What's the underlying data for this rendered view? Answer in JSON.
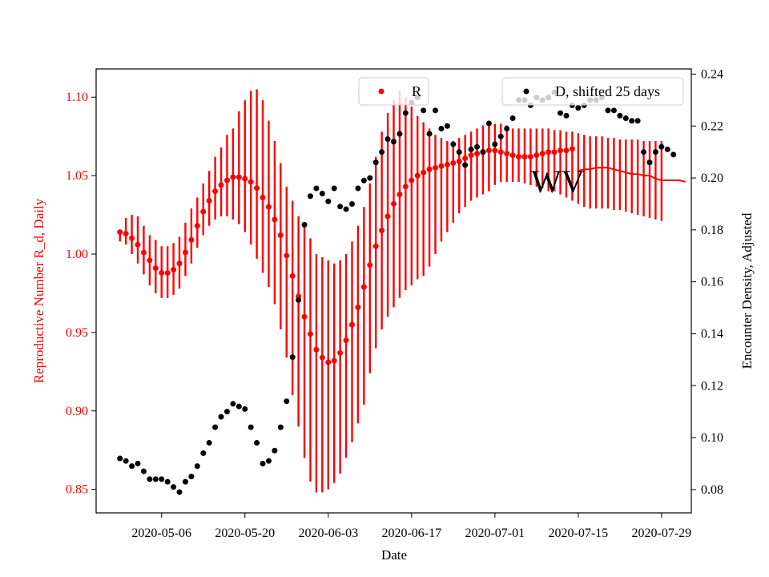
{
  "chart_data": {
    "type": "scatter",
    "xlabel": "Date",
    "ylabel_left": "Reproductive Number R_d, Daily",
    "ylabel_right": "Encounter Density, Adjusted",
    "annotation": "WV",
    "x_start": "2020-04-29",
    "x_ticks": [
      "2020-05-06",
      "2020-05-20",
      "2020-06-03",
      "2020-06-17",
      "2020-07-01",
      "2020-07-15",
      "2020-07-29"
    ],
    "x_lim": [
      "2020-04-25",
      "2020-08-03"
    ],
    "ylim_left": [
      0.835,
      1.118
    ],
    "ylim_right": [
      0.071,
      0.242
    ],
    "yticks_left": [
      "0.85",
      "0.90",
      "0.95",
      "1.00",
      "1.05",
      "1.10"
    ],
    "yticks_right": [
      "0.08",
      "0.10",
      "0.12",
      "0.14",
      "0.16",
      "0.18",
      "0.20",
      "0.22",
      "0.24"
    ],
    "colors": {
      "R": "#ff0000",
      "D": "#000000"
    },
    "legend_placement": "upper",
    "series": [
      {
        "name": "R",
        "axis": "left",
        "marker": "filled-dot",
        "color": "#ff0000",
        "values": [
          1.014,
          1.013,
          1.01,
          1.006,
          1.001,
          0.996,
          0.991,
          0.988,
          0.988,
          0.99,
          0.994,
          1.001,
          1.009,
          1.018,
          1.027,
          1.034,
          1.04,
          1.044,
          1.047,
          1.049,
          1.049,
          1.048,
          1.046,
          1.042,
          1.036,
          1.03,
          1.022,
          1.012,
          0.999,
          0.986,
          0.973,
          0.96,
          0.949,
          0.939,
          0.934,
          0.931,
          0.932,
          0.937,
          0.945,
          0.955,
          0.966,
          0.979,
          0.993,
          1.005,
          1.015,
          1.024,
          1.032,
          1.038,
          1.043,
          1.047,
          1.05,
          1.052,
          1.054,
          1.055,
          1.056,
          1.057,
          1.058,
          1.059,
          1.061,
          1.063,
          1.064,
          1.065,
          1.066,
          1.066,
          1.065,
          1.064,
          1.063,
          1.062,
          1.062,
          1.062,
          1.063,
          1.064,
          1.065,
          1.065,
          1.066,
          1.066,
          1.067,
          null,
          null,
          null,
          null,
          null,
          null,
          null,
          null,
          null,
          null,
          null,
          null,
          null,
          null,
          null
        ],
        "lower": [
          1.008,
          1.006,
          1.0,
          0.994,
          0.987,
          0.98,
          0.975,
          0.972,
          0.972,
          0.974,
          0.978,
          0.986,
          0.994,
          1.004,
          1.012,
          1.018,
          1.022,
          1.024,
          1.024,
          1.022,
          1.019,
          1.014,
          1.006,
          0.997,
          0.988,
          0.979,
          0.968,
          0.952,
          0.934,
          0.91,
          0.89,
          0.87,
          0.855,
          0.848,
          0.848,
          0.85,
          0.854,
          0.86,
          0.87,
          0.88,
          0.892,
          0.904,
          0.924,
          0.94,
          0.952,
          0.96,
          0.966,
          0.972,
          0.977,
          0.98,
          0.984,
          0.986,
          0.992,
          1.0,
          1.008,
          1.014,
          1.02,
          1.026,
          1.03,
          1.034,
          1.036,
          1.038,
          1.04,
          1.044,
          1.046,
          1.046,
          1.046,
          1.046,
          1.045,
          1.044,
          1.043,
          1.042,
          1.04,
          1.04,
          1.038,
          1.036,
          1.034,
          1.032,
          1.03,
          1.029,
          1.029,
          1.029,
          1.029,
          1.028,
          1.028,
          1.027,
          1.026,
          1.025,
          1.024,
          1.023,
          1.022,
          1.021
        ],
        "upper": [
          1.015,
          1.023,
          1.025,
          1.024,
          1.018,
          1.012,
          1.009,
          1.005,
          1.005,
          1.007,
          1.011,
          1.02,
          1.029,
          1.036,
          1.045,
          1.053,
          1.062,
          1.068,
          1.076,
          1.08,
          1.091,
          1.098,
          1.104,
          1.105,
          1.098,
          1.085,
          1.072,
          1.058,
          1.043,
          1.034,
          1.024,
          1.018,
          1.01,
          1.0,
          0.998,
          0.996,
          0.994,
          0.996,
          1.0,
          1.008,
          1.018,
          1.03,
          1.045,
          1.062,
          1.078,
          1.09,
          1.098,
          1.104,
          1.1,
          1.094,
          1.088,
          1.084,
          1.08,
          1.076,
          1.074,
          1.072,
          1.072,
          1.074,
          1.076,
          1.078,
          1.08,
          1.082,
          1.082,
          1.083,
          1.083,
          1.082,
          1.08,
          1.08,
          1.08,
          1.08,
          1.08,
          1.08,
          1.08,
          1.079,
          1.079,
          1.078,
          1.078,
          1.077,
          1.076,
          1.075,
          1.075,
          1.075,
          1.074,
          1.074,
          1.073,
          1.073,
          1.073,
          1.073,
          1.072,
          1.072,
          1.072,
          1.072
        ],
        "line_values": [
          null,
          null,
          null,
          null,
          null,
          null,
          null,
          null,
          null,
          null,
          null,
          null,
          null,
          null,
          null,
          null,
          null,
          null,
          null,
          null,
          null,
          null,
          null,
          null,
          null,
          null,
          null,
          null,
          null,
          null,
          null,
          null,
          null,
          null,
          null,
          null,
          null,
          null,
          null,
          null,
          null,
          null,
          null,
          null,
          null,
          null,
          null,
          null,
          null,
          null,
          null,
          null,
          null,
          null,
          null,
          null,
          null,
          null,
          null,
          null,
          null,
          null,
          null,
          null,
          null,
          null,
          null,
          null,
          null,
          null,
          null,
          null,
          null,
          null,
          null,
          null,
          null,
          1.053,
          1.054,
          1.054,
          1.055,
          1.055,
          1.055,
          1.054,
          1.053,
          1.052,
          1.051,
          1.051,
          1.05,
          1.05,
          1.048,
          1.047,
          1.047,
          1.047,
          1.047,
          1.046
        ]
      },
      {
        "name": "D, shifted 25 days",
        "axis": "right",
        "marker": "filled-dot",
        "color": "#000000",
        "values": [
          0.092,
          0.091,
          0.089,
          0.09,
          0.087,
          0.084,
          0.084,
          0.084,
          0.083,
          0.081,
          0.079,
          0.083,
          0.085,
          0.089,
          0.094,
          0.098,
          0.104,
          0.108,
          0.11,
          0.113,
          0.112,
          0.111,
          0.104,
          0.098,
          0.09,
          0.091,
          0.095,
          0.104,
          0.114,
          0.131,
          0.153,
          0.182,
          0.193,
          0.196,
          0.194,
          0.191,
          0.196,
          0.189,
          0.188,
          0.19,
          0.196,
          0.199,
          0.2,
          0.206,
          0.21,
          0.215,
          0.214,
          0.217,
          0.225,
          0.229,
          0.231,
          0.226,
          0.217,
          0.226,
          0.219,
          0.22,
          0.213,
          0.21,
          0.205,
          0.211,
          0.212,
          0.21,
          0.221,
          0.213,
          0.216,
          0.219,
          0.223,
          0.23,
          0.23,
          0.228,
          0.231,
          0.23,
          0.231,
          0.233,
          0.225,
          0.224,
          0.228,
          0.227,
          0.228,
          0.23,
          0.23,
          0.231,
          0.226,
          0.226,
          0.224,
          0.223,
          0.222,
          0.222,
          0.21,
          0.206,
          0.21,
          0.212,
          0.211,
          0.209
        ]
      }
    ]
  }
}
